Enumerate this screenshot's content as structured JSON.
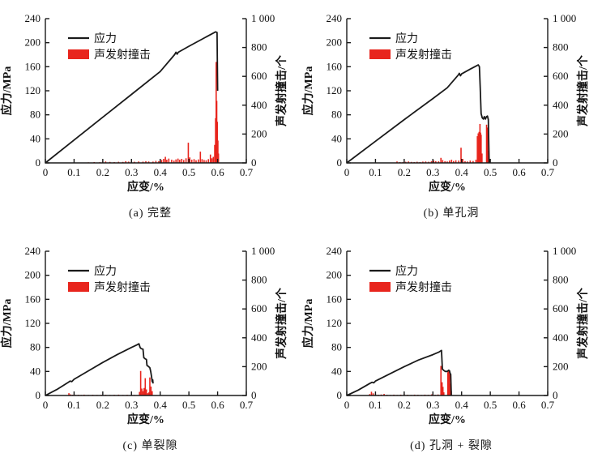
{
  "colors": {
    "stress_line": "#1a1a1a",
    "ae_bar": "#e8251d",
    "axis": "#1a1a1a",
    "background": "#ffffff"
  },
  "legend": {
    "stress_label": "应力",
    "ae_label": "声发射撞击"
  },
  "axes": {
    "x_label": "应变/%",
    "y_left_label": "应力/MPa",
    "y_right_label": "声发射撞击/个",
    "x_range": [
      0,
      0.7
    ],
    "y_left_range": [
      0,
      240
    ],
    "y_right_range": [
      0,
      1000
    ],
    "x_ticks": [
      0,
      0.1,
      0.2,
      0.3,
      0.4,
      0.5,
      0.6,
      0.7
    ],
    "x_tick_labels": [
      "0",
      "0.1",
      "0.2",
      "0.3",
      "0.4",
      "0.5",
      "0.6",
      "0.7"
    ],
    "y_left_ticks": [
      0,
      40,
      80,
      120,
      160,
      200,
      240
    ],
    "y_left_tick_labels": [
      "0",
      "40",
      "80",
      "120",
      "160",
      "200",
      "240"
    ],
    "y_right_ticks": [
      0,
      200,
      400,
      600,
      800,
      1000
    ],
    "y_right_tick_labels": [
      "0",
      "200",
      "400",
      "600",
      "800",
      "1 000"
    ],
    "grid": false,
    "legend_position": "upper-left-inside",
    "tick_direction": "in"
  },
  "chart_data": [
    {
      "type": "line+bar",
      "caption": "(a) 完整",
      "stress_series_name": "应力",
      "ae_series_name": "声发射撞击",
      "peak_stress_mpa": 218,
      "peak_strain_pct": 0.59,
      "stress_curve": [
        [
          0,
          0
        ],
        [
          0.1,
          38
        ],
        [
          0.2,
          76
        ],
        [
          0.3,
          114
        ],
        [
          0.4,
          152
        ],
        [
          0.45,
          180
        ],
        [
          0.455,
          184
        ],
        [
          0.459,
          181
        ],
        [
          0.463,
          184
        ],
        [
          0.5,
          194
        ],
        [
          0.55,
          207
        ],
        [
          0.585,
          216
        ],
        [
          0.593,
          218
        ],
        [
          0.598,
          217
        ],
        [
          0.6,
          120
        ]
      ],
      "ae_hits": [
        [
          0.15,
          4
        ],
        [
          0.17,
          6
        ],
        [
          0.19,
          5
        ],
        [
          0.2,
          8
        ],
        [
          0.21,
          10
        ],
        [
          0.225,
          7
        ],
        [
          0.24,
          6
        ],
        [
          0.255,
          8
        ],
        [
          0.27,
          7
        ],
        [
          0.28,
          12
        ],
        [
          0.29,
          9
        ],
        [
          0.3,
          11
        ],
        [
          0.31,
          8
        ],
        [
          0.325,
          10
        ],
        [
          0.34,
          9
        ],
        [
          0.35,
          12
        ],
        [
          0.36,
          10
        ],
        [
          0.375,
          9
        ],
        [
          0.385,
          14
        ],
        [
          0.395,
          12
        ],
        [
          0.405,
          20
        ],
        [
          0.412,
          28
        ],
        [
          0.418,
          42
        ],
        [
          0.423,
          22
        ],
        [
          0.43,
          30
        ],
        [
          0.44,
          22
        ],
        [
          0.448,
          16
        ],
        [
          0.455,
          24
        ],
        [
          0.462,
          30
        ],
        [
          0.468,
          22
        ],
        [
          0.475,
          28
        ],
        [
          0.482,
          20
        ],
        [
          0.49,
          32
        ],
        [
          0.498,
          140
        ],
        [
          0.503,
          38
        ],
        [
          0.51,
          22
        ],
        [
          0.518,
          26
        ],
        [
          0.525,
          18
        ],
        [
          0.533,
          24
        ],
        [
          0.54,
          78
        ],
        [
          0.546,
          26
        ],
        [
          0.553,
          20
        ],
        [
          0.56,
          18
        ],
        [
          0.568,
          26
        ],
        [
          0.575,
          58
        ],
        [
          0.58,
          32
        ],
        [
          0.585,
          42
        ],
        [
          0.59,
          125
        ],
        [
          0.593,
          310
        ],
        [
          0.595,
          700
        ],
        [
          0.597,
          430
        ],
        [
          0.599,
          285
        ],
        [
          0.601,
          155
        ],
        [
          0.603,
          65
        ]
      ]
    },
    {
      "type": "line+bar",
      "caption": "(b) 单孔洞",
      "stress_series_name": "应力",
      "ae_series_name": "声发射撞击",
      "peak_stress_mpa": 163,
      "peak_strain_pct": 0.46,
      "stress_curve": [
        [
          0,
          0
        ],
        [
          0.1,
          36
        ],
        [
          0.2,
          72
        ],
        [
          0.3,
          107
        ],
        [
          0.35,
          125
        ],
        [
          0.388,
          146
        ],
        [
          0.392,
          149
        ],
        [
          0.396,
          145
        ],
        [
          0.4,
          148
        ],
        [
          0.43,
          156
        ],
        [
          0.458,
          163
        ],
        [
          0.462,
          160
        ],
        [
          0.465,
          125
        ],
        [
          0.468,
          82
        ],
        [
          0.472,
          75
        ],
        [
          0.476,
          73
        ],
        [
          0.479,
          77
        ],
        [
          0.483,
          73
        ],
        [
          0.487,
          77
        ],
        [
          0.49,
          78
        ],
        [
          0.493,
          72
        ],
        [
          0.496,
          0
        ]
      ],
      "ae_hits": [
        [
          0.175,
          10
        ],
        [
          0.185,
          6
        ],
        [
          0.195,
          5
        ],
        [
          0.205,
          8
        ],
        [
          0.215,
          10
        ],
        [
          0.225,
          7
        ],
        [
          0.235,
          6
        ],
        [
          0.245,
          8
        ],
        [
          0.255,
          6
        ],
        [
          0.265,
          9
        ],
        [
          0.275,
          10
        ],
        [
          0.285,
          8
        ],
        [
          0.295,
          12
        ],
        [
          0.303,
          16
        ],
        [
          0.31,
          12
        ],
        [
          0.32,
          11
        ],
        [
          0.328,
          35
        ],
        [
          0.334,
          20
        ],
        [
          0.342,
          12
        ],
        [
          0.35,
          10
        ],
        [
          0.358,
          16
        ],
        [
          0.365,
          22
        ],
        [
          0.372,
          13
        ],
        [
          0.38,
          18
        ],
        [
          0.39,
          16
        ],
        [
          0.398,
          105
        ],
        [
          0.404,
          28
        ],
        [
          0.412,
          12
        ],
        [
          0.42,
          10
        ],
        [
          0.43,
          16
        ],
        [
          0.44,
          13
        ],
        [
          0.45,
          22
        ],
        [
          0.455,
          185
        ],
        [
          0.458,
          205
        ],
        [
          0.461,
          215
        ],
        [
          0.464,
          270
        ],
        [
          0.466,
          210
        ],
        [
          0.468,
          195
        ],
        [
          0.471,
          65
        ],
        [
          0.487,
          265
        ],
        [
          0.49,
          245
        ],
        [
          0.493,
          85
        ]
      ]
    },
    {
      "type": "line+bar",
      "caption": "(c) 单裂隙",
      "stress_series_name": "应力",
      "ae_series_name": "声发射撞击",
      "peak_stress_mpa": 86,
      "peak_strain_pct": 0.33,
      "stress_curve": [
        [
          0,
          0
        ],
        [
          0.04,
          10
        ],
        [
          0.08,
          22
        ],
        [
          0.086,
          24
        ],
        [
          0.092,
          23
        ],
        [
          0.1,
          27
        ],
        [
          0.15,
          41
        ],
        [
          0.2,
          55
        ],
        [
          0.25,
          68
        ],
        [
          0.3,
          80
        ],
        [
          0.318,
          84
        ],
        [
          0.326,
          86
        ],
        [
          0.33,
          80
        ],
        [
          0.334,
          78
        ],
        [
          0.34,
          77
        ],
        [
          0.343,
          63
        ],
        [
          0.348,
          61
        ],
        [
          0.352,
          60
        ],
        [
          0.354,
          50
        ],
        [
          0.36,
          48
        ],
        [
          0.364,
          46
        ],
        [
          0.367,
          40
        ],
        [
          0.37,
          31
        ],
        [
          0.372,
          23
        ],
        [
          0.374,
          26
        ],
        [
          0.375,
          20
        ]
      ],
      "ae_hits": [
        [
          0.082,
          16
        ],
        [
          0.088,
          8
        ],
        [
          0.095,
          5
        ],
        [
          0.105,
          4
        ],
        [
          0.115,
          5
        ],
        [
          0.125,
          4
        ],
        [
          0.135,
          6
        ],
        [
          0.15,
          4
        ],
        [
          0.165,
          5
        ],
        [
          0.18,
          4
        ],
        [
          0.195,
          5
        ],
        [
          0.21,
          5
        ],
        [
          0.225,
          4
        ],
        [
          0.24,
          5
        ],
        [
          0.255,
          6
        ],
        [
          0.27,
          4
        ],
        [
          0.285,
          5
        ],
        [
          0.3,
          6
        ],
        [
          0.31,
          4
        ],
        [
          0.328,
          25
        ],
        [
          0.332,
          170
        ],
        [
          0.336,
          48
        ],
        [
          0.34,
          30
        ],
        [
          0.344,
          52
        ],
        [
          0.348,
          120
        ],
        [
          0.352,
          42
        ],
        [
          0.357,
          16
        ],
        [
          0.361,
          22
        ],
        [
          0.364,
          125
        ],
        [
          0.368,
          62
        ],
        [
          0.372,
          30
        ]
      ]
    },
    {
      "type": "line+bar",
      "caption": "(d) 孔洞 + 裂隙",
      "stress_series_name": "应力",
      "ae_series_name": "声发射撞击",
      "peak_stress_mpa": 75,
      "peak_strain_pct": 0.33,
      "stress_curve": [
        [
          0,
          0
        ],
        [
          0.04,
          9
        ],
        [
          0.08,
          20
        ],
        [
          0.088,
          22
        ],
        [
          0.094,
          21
        ],
        [
          0.1,
          24
        ],
        [
          0.15,
          36
        ],
        [
          0.2,
          48
        ],
        [
          0.25,
          59
        ],
        [
          0.3,
          68
        ],
        [
          0.32,
          72
        ],
        [
          0.33,
          75
        ],
        [
          0.333,
          44
        ],
        [
          0.337,
          42
        ],
        [
          0.343,
          40
        ],
        [
          0.35,
          40
        ],
        [
          0.355,
          42
        ],
        [
          0.358,
          41
        ],
        [
          0.36,
          37
        ],
        [
          0.362,
          35
        ],
        [
          0.364,
          0
        ]
      ],
      "ae_hits": [
        [
          0.08,
          10
        ],
        [
          0.086,
          26
        ],
        [
          0.092,
          15
        ],
        [
          0.1,
          8
        ],
        [
          0.11,
          5
        ],
        [
          0.12,
          7
        ],
        [
          0.13,
          11
        ],
        [
          0.14,
          5
        ],
        [
          0.152,
          4
        ],
        [
          0.164,
          6
        ],
        [
          0.176,
          4
        ],
        [
          0.188,
          6
        ],
        [
          0.2,
          8
        ],
        [
          0.212,
          5
        ],
        [
          0.224,
          4
        ],
        [
          0.236,
          6
        ],
        [
          0.248,
          5
        ],
        [
          0.26,
          4
        ],
        [
          0.272,
          6
        ],
        [
          0.284,
          5
        ],
        [
          0.296,
          8
        ],
        [
          0.308,
          5
        ],
        [
          0.318,
          7
        ],
        [
          0.328,
          205
        ],
        [
          0.332,
          92
        ],
        [
          0.335,
          60
        ],
        [
          0.338,
          22
        ],
        [
          0.352,
          162
        ],
        [
          0.355,
          172
        ],
        [
          0.358,
          150
        ],
        [
          0.361,
          82
        ],
        [
          0.364,
          32
        ]
      ]
    }
  ]
}
